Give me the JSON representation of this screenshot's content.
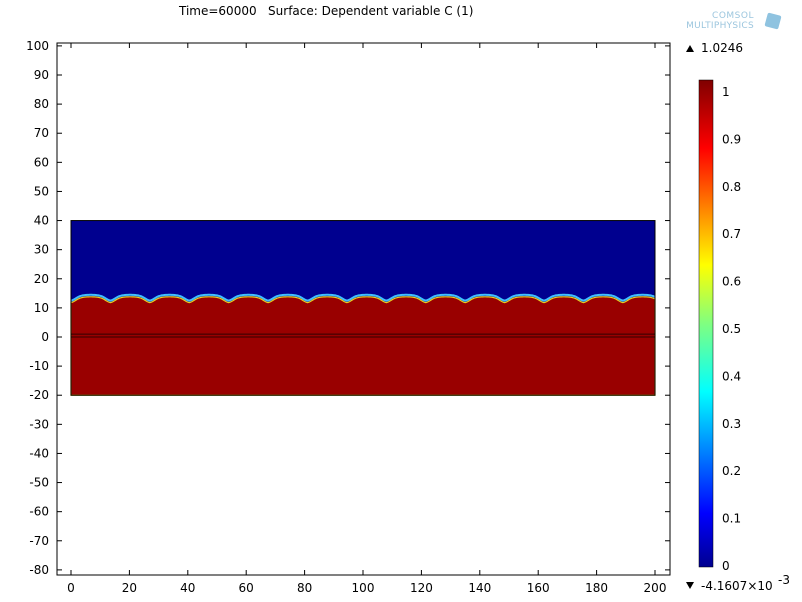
{
  "title": "Time=60000   Surface: Dependent variable C (1)",
  "logo": {
    "line1": "COMSOL",
    "line2": "MULTIPHYSICS"
  },
  "chart_data": {
    "type": "heatmap",
    "title": "Time=60000   Surface: Dependent variable C (1)",
    "xlim": [
      -5,
      205
    ],
    "ylim": [
      -81,
      101
    ],
    "x_ticks": [
      0,
      20,
      40,
      60,
      80,
      100,
      120,
      140,
      160,
      180,
      200
    ],
    "y_ticks": [
      100,
      90,
      80,
      70,
      60,
      50,
      40,
      30,
      20,
      10,
      0,
      -10,
      -20,
      -30,
      -40,
      -50,
      -60,
      -70,
      -80
    ],
    "domain": {
      "x": [
        0,
        200
      ],
      "y": [
        -20,
        40
      ]
    },
    "interface_y_approx": 13,
    "inner_lines_y": [
      0,
      1
    ],
    "colormap": "rainbow",
    "colorbar": {
      "ticks": [
        1,
        0.9,
        0.8,
        0.7,
        0.6,
        0.5,
        0.4,
        0.3,
        0.2,
        0.1,
        0
      ],
      "tick_labels": [
        "1",
        "0.9",
        "0.8",
        "0.7",
        "0.6",
        "0.5",
        "0.4",
        "0.3",
        "0.2",
        "0.1",
        "0"
      ],
      "max_label": "1.0246",
      "min_label": "-4.1607×10",
      "min_exponent": "-3",
      "max": 1.0246,
      "min": -0.0041607
    },
    "colors": {
      "high": "#990000",
      "low": "#00008f"
    }
  }
}
